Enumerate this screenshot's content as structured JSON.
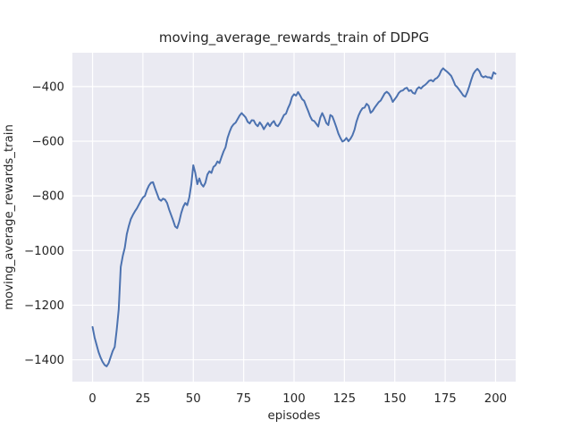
{
  "window": {
    "background_color": "#ffffff"
  },
  "chart_data": {
    "type": "line",
    "title": "moving_average_rewards_train of DDPG",
    "xlabel": "episodes",
    "ylabel": "moving_average_rewards_train",
    "grid": true,
    "legend_position": "none",
    "xlim": [
      -10,
      210
    ],
    "ylim": [
      -1480,
      -276
    ],
    "xticks": [
      0,
      25,
      50,
      75,
      100,
      125,
      150,
      175,
      200
    ],
    "xtick_labels": [
      "0",
      "25",
      "50",
      "75",
      "100",
      "125",
      "150",
      "175",
      "200"
    ],
    "yticks": [
      -400,
      -600,
      -800,
      -1000,
      -1200,
      -1400
    ],
    "ytick_labels": [
      "−400",
      "−600",
      "−800",
      "−1000",
      "−1200",
      "−1400"
    ],
    "style": {
      "axes_background": "#eaeaf2",
      "grid_color": "#ffffff",
      "line_color": "#4c72b0",
      "text_color": "#262626"
    },
    "series": [
      {
        "name": "moving_average_rewards_train",
        "x_start": 0,
        "x_step": 1,
        "y": [
          -1280,
          -1318,
          -1345,
          -1372,
          -1392,
          -1408,
          -1419,
          -1424,
          -1412,
          -1390,
          -1368,
          -1353,
          -1290,
          -1215,
          -1060,
          -1020,
          -990,
          -940,
          -910,
          -885,
          -870,
          -857,
          -846,
          -832,
          -818,
          -806,
          -800,
          -778,
          -762,
          -752,
          -750,
          -772,
          -792,
          -812,
          -818,
          -810,
          -814,
          -826,
          -850,
          -870,
          -890,
          -912,
          -918,
          -895,
          -863,
          -840,
          -826,
          -834,
          -806,
          -758,
          -688,
          -716,
          -757,
          -736,
          -757,
          -766,
          -752,
          -722,
          -710,
          -716,
          -694,
          -688,
          -674,
          -680,
          -658,
          -638,
          -622,
          -588,
          -566,
          -548,
          -538,
          -532,
          -519,
          -506,
          -497,
          -505,
          -513,
          -529,
          -535,
          -523,
          -524,
          -538,
          -545,
          -531,
          -541,
          -556,
          -544,
          -533,
          -545,
          -533,
          -526,
          -541,
          -545,
          -534,
          -519,
          -504,
          -499,
          -479,
          -463,
          -438,
          -428,
          -433,
          -420,
          -432,
          -446,
          -452,
          -471,
          -489,
          -509,
          -523,
          -526,
          -536,
          -546,
          -514,
          -497,
          -513,
          -533,
          -541,
          -504,
          -509,
          -528,
          -549,
          -572,
          -588,
          -601,
          -597,
          -588,
          -600,
          -591,
          -578,
          -558,
          -528,
          -506,
          -490,
          -479,
          -477,
          -463,
          -470,
          -496,
          -489,
          -477,
          -467,
          -457,
          -451,
          -438,
          -425,
          -419,
          -425,
          -437,
          -456,
          -446,
          -436,
          -423,
          -416,
          -414,
          -407,
          -404,
          -416,
          -413,
          -423,
          -426,
          -409,
          -402,
          -407,
          -399,
          -394,
          -387,
          -379,
          -376,
          -381,
          -372,
          -368,
          -359,
          -342,
          -333,
          -340,
          -346,
          -353,
          -361,
          -377,
          -395,
          -402,
          -412,
          -422,
          -433,
          -437,
          -420,
          -398,
          -374,
          -353,
          -342,
          -335,
          -344,
          -361,
          -366,
          -362,
          -366,
          -366,
          -371,
          -348,
          -353
        ]
      }
    ]
  }
}
